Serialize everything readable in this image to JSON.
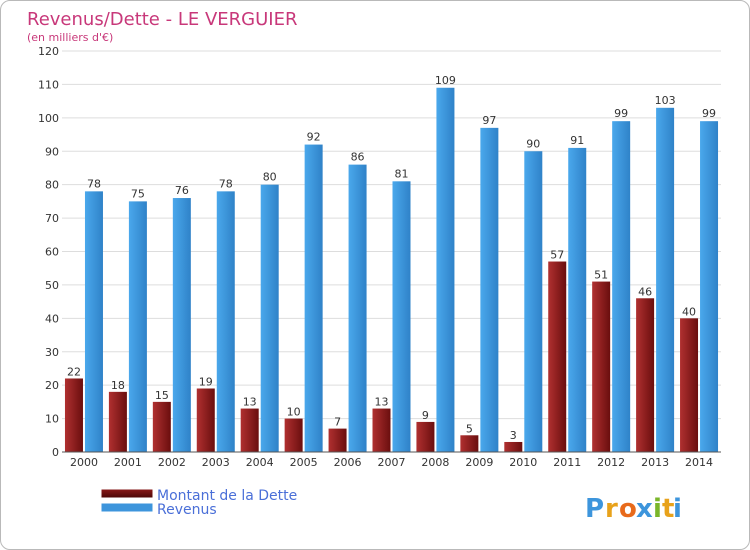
{
  "chart_data": {
    "type": "bar",
    "title": "Revenus/Dette - LE VERGUIER",
    "subtitle": "(en milliers d'€)",
    "categories": [
      "2000",
      "2001",
      "2002",
      "2003",
      "2004",
      "2005",
      "2006",
      "2007",
      "2008",
      "2009",
      "2010",
      "2011",
      "2012",
      "2013",
      "2014"
    ],
    "series": [
      {
        "name": "Montant de la Dette",
        "values": [
          22,
          18,
          15,
          19,
          13,
          10,
          7,
          13,
          9,
          5,
          3,
          57,
          51,
          46,
          40
        ],
        "color": "#8b1a1a"
      },
      {
        "name": "Revenus",
        "values": [
          78,
          75,
          76,
          78,
          80,
          92,
          86,
          81,
          109,
          97,
          90,
          91,
          99,
          103,
          99
        ],
        "color": "#3d95dc"
      }
    ],
    "ylim": [
      0,
      120
    ],
    "yticks": [
      0,
      10,
      20,
      30,
      40,
      50,
      60,
      70,
      80,
      90,
      100,
      110,
      120
    ],
    "grid": true,
    "legend": "bottom-left"
  },
  "logo": {
    "letters": [
      "P",
      "r",
      "o",
      "x",
      "i",
      "t",
      "i"
    ],
    "colors": [
      "#3d95dc",
      "#e8a21b",
      "#e86a1b",
      "#3d95dc",
      "#7ab62a",
      "#e8a21b",
      "#3d95dc"
    ]
  }
}
